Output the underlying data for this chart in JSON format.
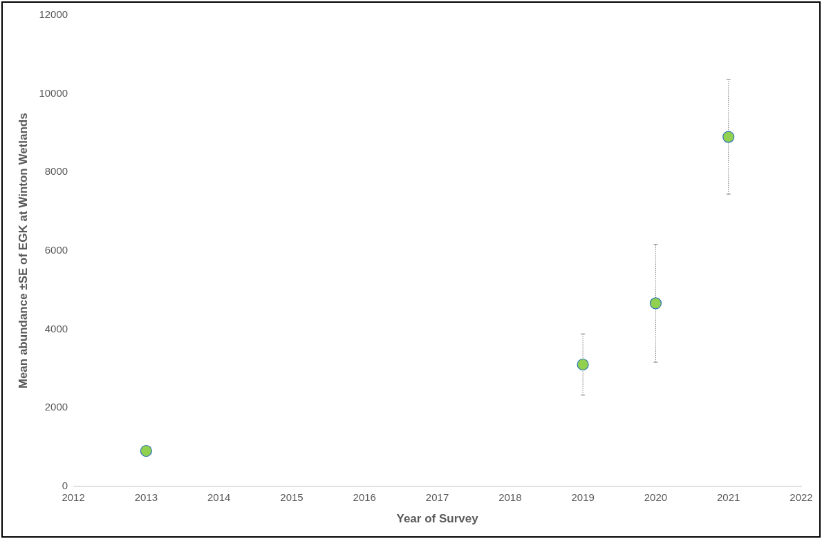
{
  "chart_data": {
    "type": "scatter",
    "xlabel": "Year of Survey",
    "ylabel": "Mean abundance ±SE of EGK at Winton Wetlands",
    "x": [
      2013,
      2019,
      2020,
      2021
    ],
    "series": [
      {
        "color": "#92d050",
        "values": [
          900,
          3100,
          4660,
          8900
        ],
        "errors": [
          null,
          780,
          1500,
          1460
        ]
      }
    ],
    "xlim": [
      2012,
      2022
    ],
    "xticks": [
      2012,
      2013,
      2014,
      2015,
      2016,
      2017,
      2018,
      2019,
      2020,
      2021,
      2022
    ],
    "ylim": [
      0,
      12000
    ],
    "yticks": [
      0,
      2000,
      4000,
      6000,
      8000,
      10000,
      12000
    ],
    "grid": false,
    "legend": false,
    "marker": "circle"
  }
}
